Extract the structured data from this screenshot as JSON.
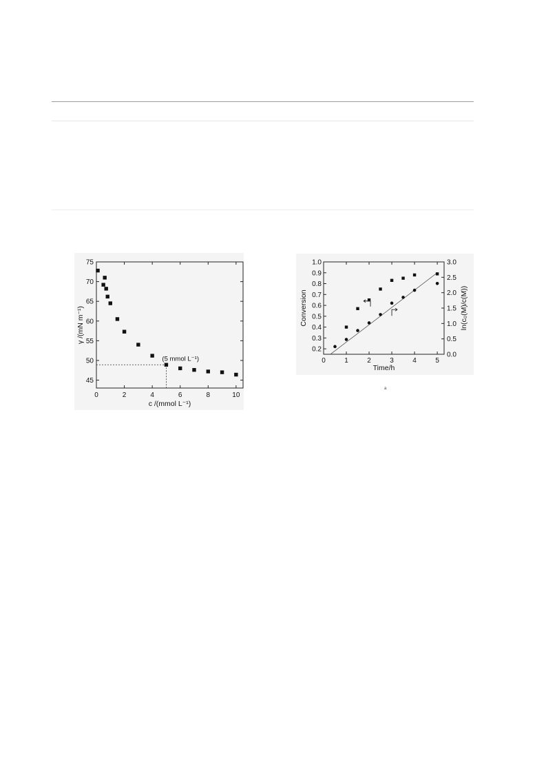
{
  "chart_data": [
    {
      "type": "scatter",
      "xlabel": "c /(mmol L⁻¹)",
      "ylabel": "γ /(mN m⁻¹)",
      "xlim": [
        0,
        10.5
      ],
      "ylim": [
        43,
        75
      ],
      "xticks": [
        0,
        2,
        4,
        6,
        8,
        10
      ],
      "yticks": [
        45,
        50,
        55,
        60,
        65,
        70,
        75
      ],
      "x": [
        0.1,
        0.5,
        0.6,
        0.7,
        0.8,
        1.0,
        1.5,
        2.0,
        3.0,
        4.0,
        5.0,
        6.0,
        7.0,
        8.0,
        9.0,
        10.0
      ],
      "y": [
        72.8,
        69.2,
        71.0,
        68.2,
        66.2,
        64.5,
        60.5,
        57.3,
        54.0,
        51.2,
        48.9,
        48.0,
        47.6,
        47.2,
        47.0,
        46.4
      ],
      "annotation": "(5 mmol L⁻¹)",
      "reference_point": [
        5,
        48.9
      ],
      "legend": false,
      "grid": false
    },
    {
      "type": "scatter",
      "xlabel": "Time/h",
      "ylabel_left": "Conversion",
      "ylabel_right": "ln(c₀(M)/c(M))",
      "xlim": [
        0,
        5.3
      ],
      "ylim_left": [
        0.15,
        1.0
      ],
      "ylim_right": [
        0.0,
        3.0
      ],
      "xticks": [
        0,
        1,
        2,
        3,
        4,
        5
      ],
      "yticks_left": [
        0.2,
        0.3,
        0.4,
        0.5,
        0.6,
        0.7,
        0.8,
        0.9,
        1.0
      ],
      "yticks_left_labels": [
        "0.2",
        "0.3",
        "0.4",
        "0.5",
        "0.6",
        "0.7",
        "0.8",
        "0.9",
        "1.0"
      ],
      "yticks_right": [
        0.0,
        0.5,
        1.0,
        1.5,
        2.0,
        2.5,
        3.0
      ],
      "yticks_right_labels": [
        "0.0",
        "0.5",
        "1.0",
        "1.5",
        "2.0",
        "2.5",
        "3.0"
      ],
      "series": [
        {
          "marker": "square",
          "axis": "left",
          "x": [
            1.0,
            1.5,
            2.0,
            2.5,
            3.0,
            3.5,
            4.0,
            5.0
          ],
          "y": [
            0.4,
            0.57,
            0.65,
            0.75,
            0.83,
            0.85,
            0.88,
            0.89
          ]
        },
        {
          "marker": "circle",
          "axis": "right",
          "x": [
            0.5,
            1.0,
            1.5,
            2.0,
            2.5,
            3.0,
            3.5,
            4.0,
            5.0
          ],
          "y": [
            0.25,
            0.48,
            0.77,
            1.02,
            1.29,
            1.66,
            1.85,
            2.08,
            2.3
          ]
        }
      ],
      "fit_line": {
        "axis": "right",
        "x": [
          0.3,
          5.0
        ],
        "y": [
          0.0,
          2.65
        ]
      },
      "legend": false,
      "grid": false
    }
  ],
  "figure_marker": "a"
}
